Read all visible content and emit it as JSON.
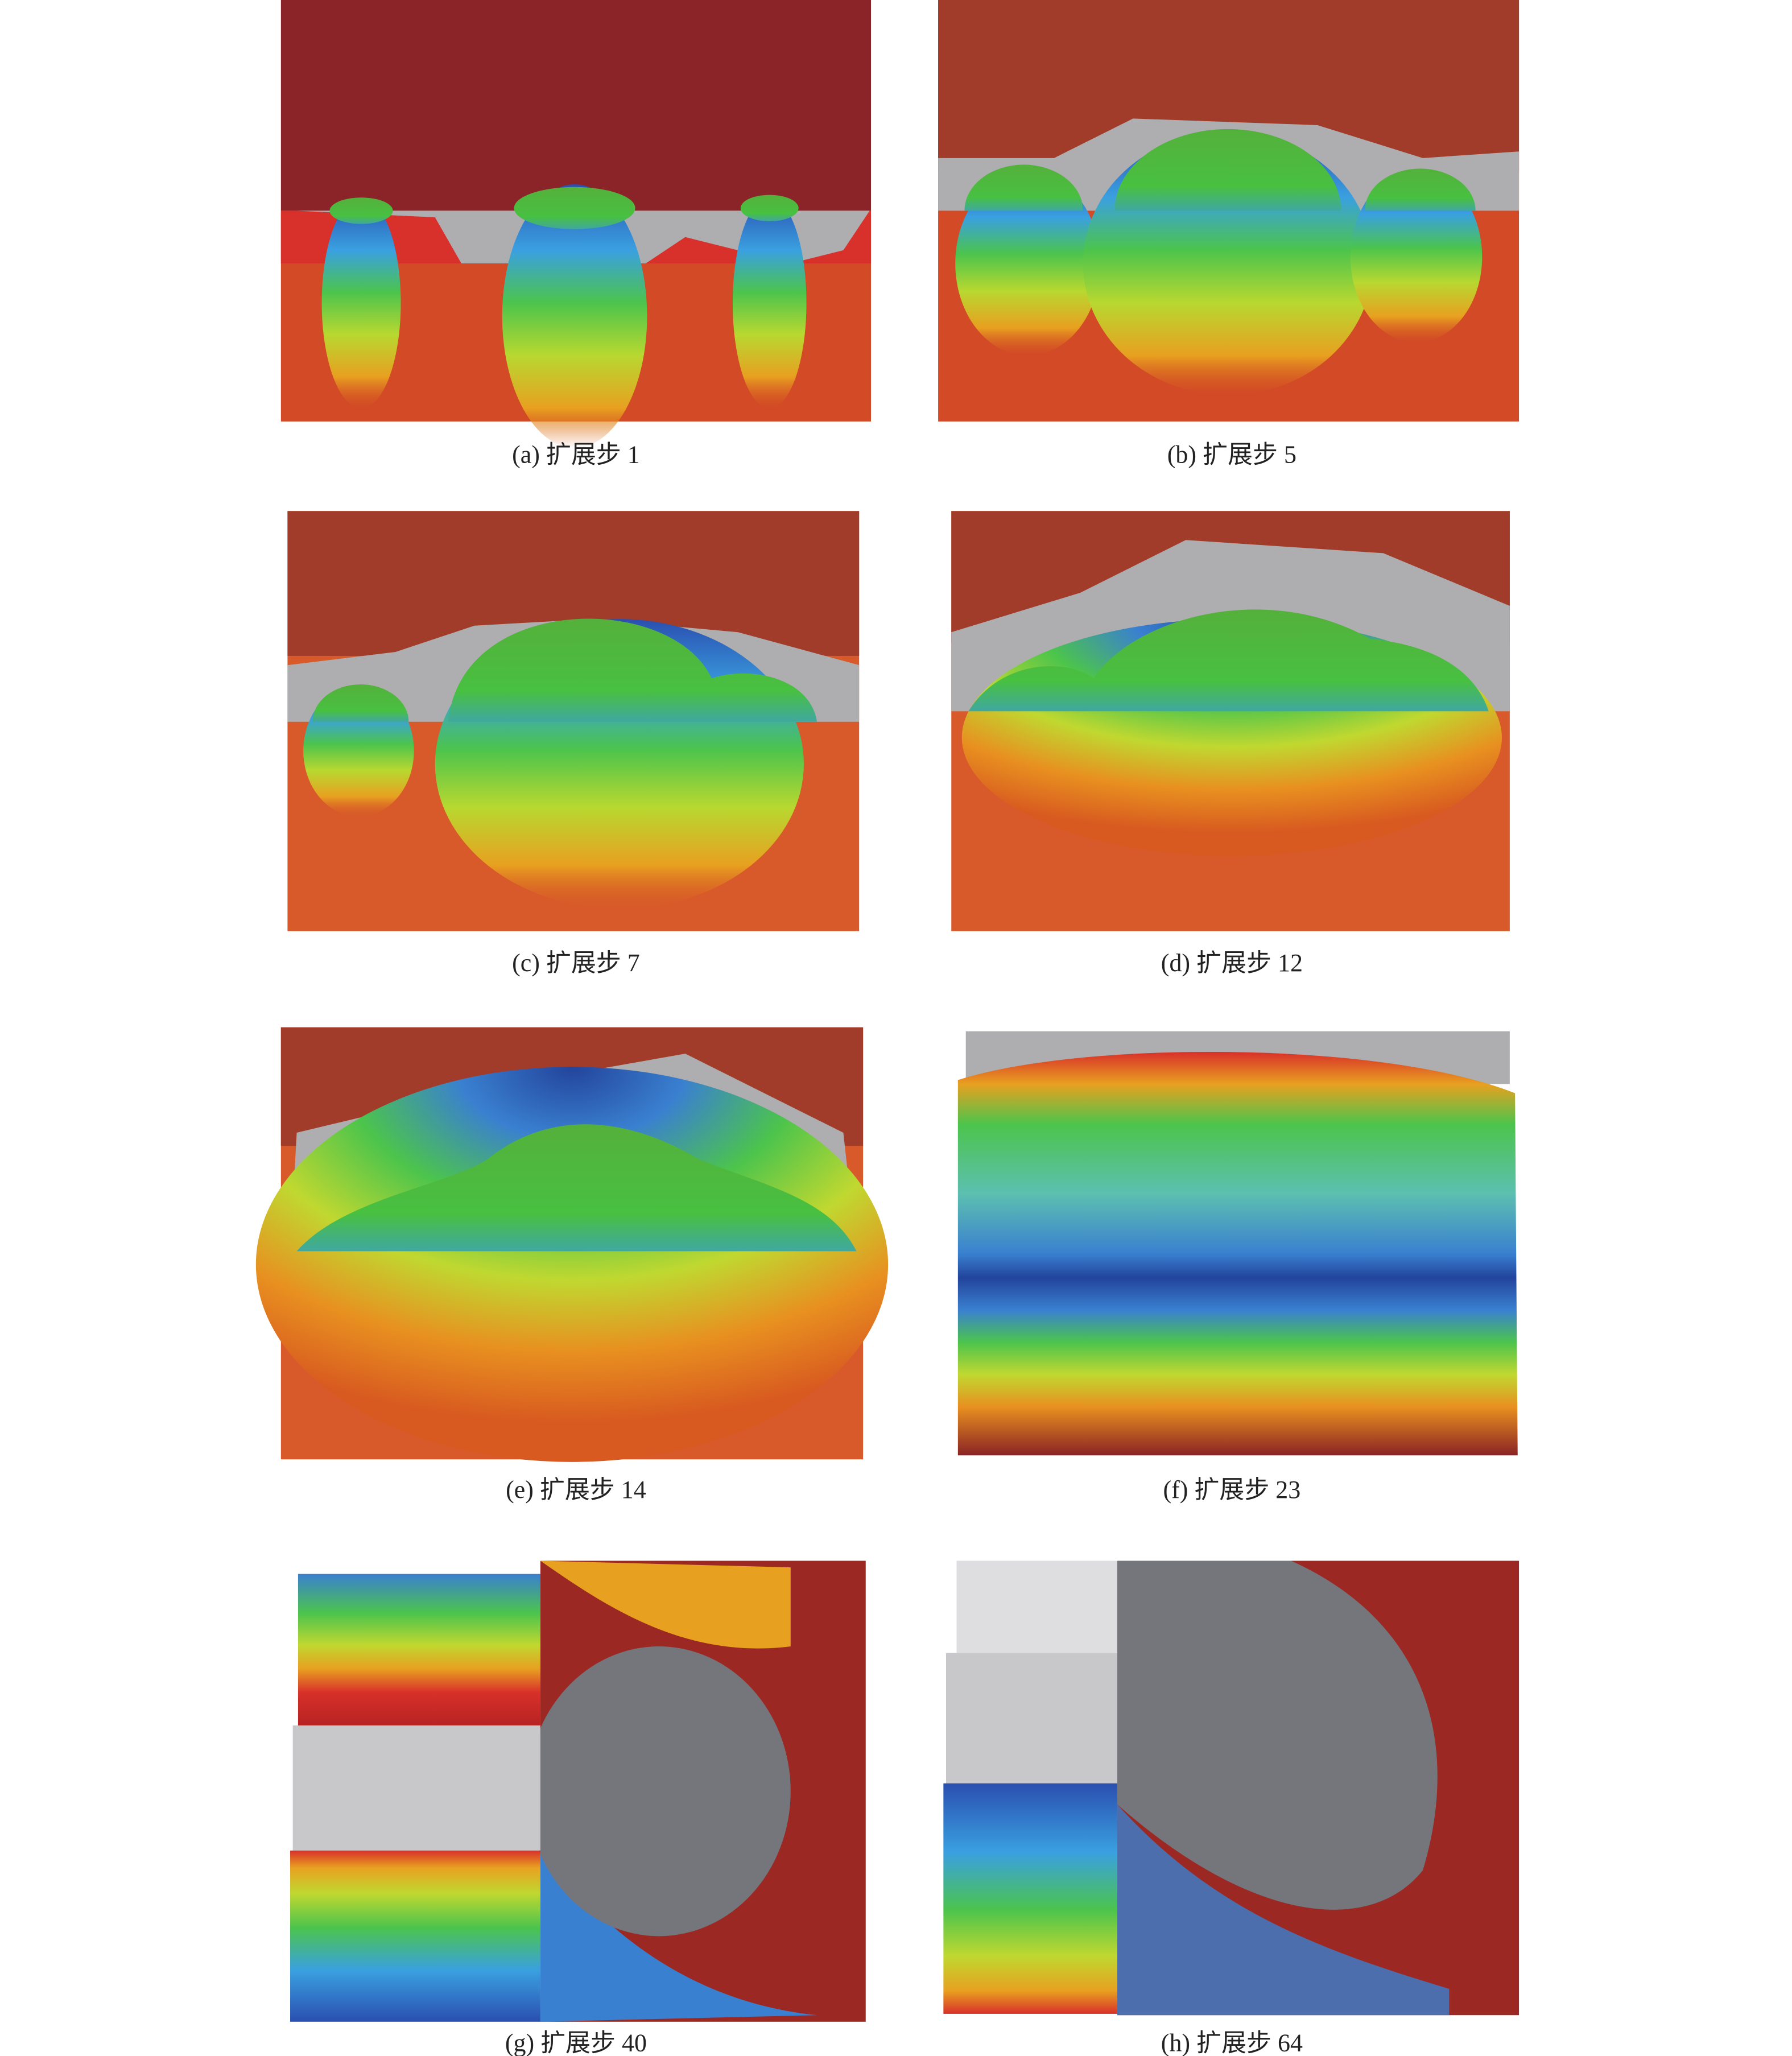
{
  "figure": {
    "panels": [
      {
        "caption": "(a) 扩展步 1"
      },
      {
        "caption": "(b) 扩展步 5"
      },
      {
        "caption": "(c) 扩展步 7"
      },
      {
        "caption": "(d) 扩展步 12"
      },
      {
        "caption": "(e) 扩展步 14"
      },
      {
        "caption": "(f) 扩展步 23"
      },
      {
        "caption": "(g) 扩展步 40"
      },
      {
        "caption": "(h) 扩展步 64"
      }
    ]
  }
}
